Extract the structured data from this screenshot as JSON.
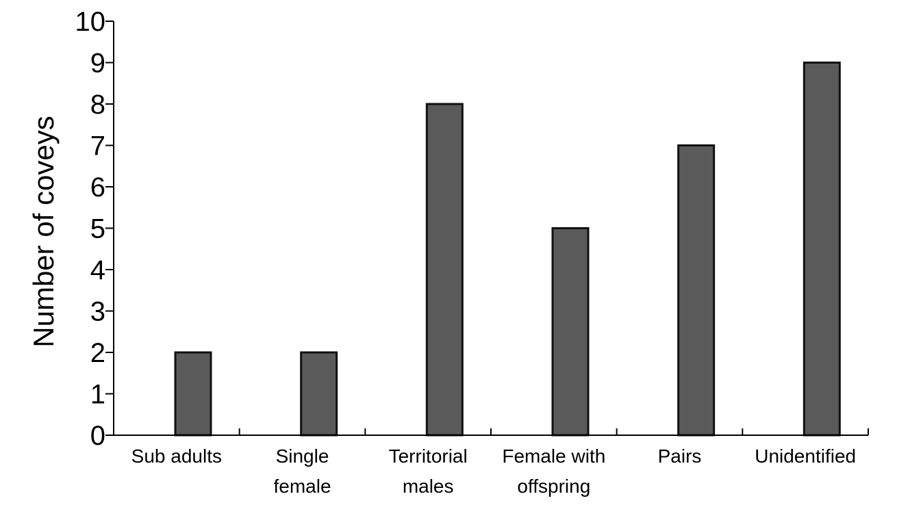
{
  "chart_data": {
    "type": "bar",
    "title": "",
    "xlabel": "",
    "ylabel": "Number of coveys",
    "ylim": [
      0,
      10
    ],
    "yticks": [
      "0",
      "1",
      "2",
      "3",
      "4",
      "5",
      "6",
      "7",
      "8",
      "9",
      "10"
    ],
    "categories": [
      [
        "Sub adults"
      ],
      [
        "Single",
        "female"
      ],
      [
        "Territorial",
        "males"
      ],
      [
        "Female with",
        "offspring"
      ],
      [
        "Pairs"
      ],
      [
        "Unidentified"
      ]
    ],
    "values": [
      2,
      2,
      8,
      5,
      7,
      9
    ],
    "grid": false,
    "legend": "none",
    "colors": {
      "bar_fill": "#5a5a5a",
      "bar_stroke": "#111111",
      "axis": "#000000"
    }
  }
}
